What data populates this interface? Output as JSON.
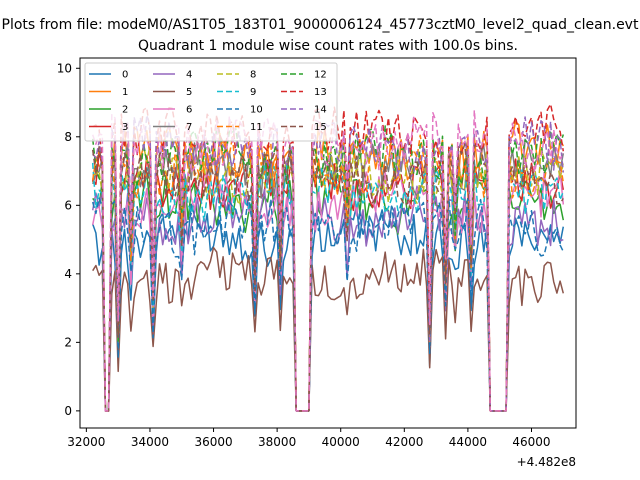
{
  "chart_data": {
    "type": "line",
    "suptitle": "Plots from file: modeM0/AS1T05_183T01_9000006124_45773cztM0_level2_quad_clean.evt",
    "title": "Quadrant 1 module wise count rates with 100.0s bins.",
    "xlabel": "",
    "ylabel": "",
    "x_offset_label": "+4.482e8",
    "xlim": [
      31800,
      47400
    ],
    "ylim": [
      -0.5,
      10.3
    ],
    "x_ticks": [
      32000,
      34000,
      36000,
      38000,
      40000,
      42000,
      44000,
      46000
    ],
    "x_tick_labels": [
      "32000",
      "34000",
      "36000",
      "38000",
      "40000",
      "42000",
      "44000",
      "46000"
    ],
    "y_ticks": [
      0,
      2,
      4,
      6,
      8,
      10
    ],
    "y_tick_labels": [
      "0",
      "2",
      "4",
      "6",
      "8",
      "10"
    ],
    "x_start": 32200,
    "x_end": 47000,
    "x_step": 100,
    "gaps": [
      [
        32600,
        32700
      ],
      [
        38600,
        39000
      ],
      [
        44700,
        45200
      ]
    ],
    "dips": [
      [
        33000,
        0.3
      ],
      [
        33400,
        0.7
      ],
      [
        34100,
        0.45
      ],
      [
        35000,
        0.75
      ],
      [
        37300,
        0.55
      ],
      [
        38100,
        0.65
      ],
      [
        40200,
        0.8
      ],
      [
        42800,
        0.3
      ],
      [
        43300,
        0.55
      ],
      [
        43600,
        0.75
      ],
      [
        44100,
        0.6
      ]
    ],
    "legend_placement": "upper-left",
    "series": [
      {
        "name": "0",
        "color": "#1f77b4",
        "dash": "solid",
        "level": 5.1
      },
      {
        "name": "1",
        "color": "#ff7f0e",
        "dash": "solid",
        "level": 7.5
      },
      {
        "name": "2",
        "color": "#2ca02c",
        "dash": "solid",
        "level": 6.1
      },
      {
        "name": "3",
        "color": "#d62728",
        "dash": "solid",
        "level": 6.7
      },
      {
        "name": "4",
        "color": "#9467bd",
        "dash": "solid",
        "level": 5.7
      },
      {
        "name": "5",
        "color": "#8c564b",
        "dash": "solid",
        "level": 3.9
      },
      {
        "name": "6",
        "color": "#e377c2",
        "dash": "solid",
        "level": 6.1
      },
      {
        "name": "7",
        "color": "#7f7f7f",
        "dash": "solid",
        "level": 7.1
      },
      {
        "name": "8",
        "color": "#bcbd22",
        "dash": "dashed",
        "level": 6.9
      },
      {
        "name": "9",
        "color": "#17becf",
        "dash": "dashed",
        "level": 6.4
      },
      {
        "name": "10",
        "color": "#1f77b4",
        "dash": "dashed",
        "level": 5.4
      },
      {
        "name": "11",
        "color": "#ff7f0e",
        "dash": "dashed",
        "level": 7.1
      },
      {
        "name": "12",
        "color": "#2ca02c",
        "dash": "dashed",
        "level": 7.4
      },
      {
        "name": "13",
        "color": "#d62728",
        "dash": "dashed",
        "level": 8.1
      },
      {
        "name": "14",
        "color": "#9467bd",
        "dash": "dashed",
        "level": 7.7
      },
      {
        "name": "15",
        "color": "#8c564b",
        "dash": "dashed",
        "level": 6.9
      },
      {
        "name": "",
        "color": "#e377c2",
        "dash": "dashed",
        "level": 7.9
      }
    ]
  }
}
